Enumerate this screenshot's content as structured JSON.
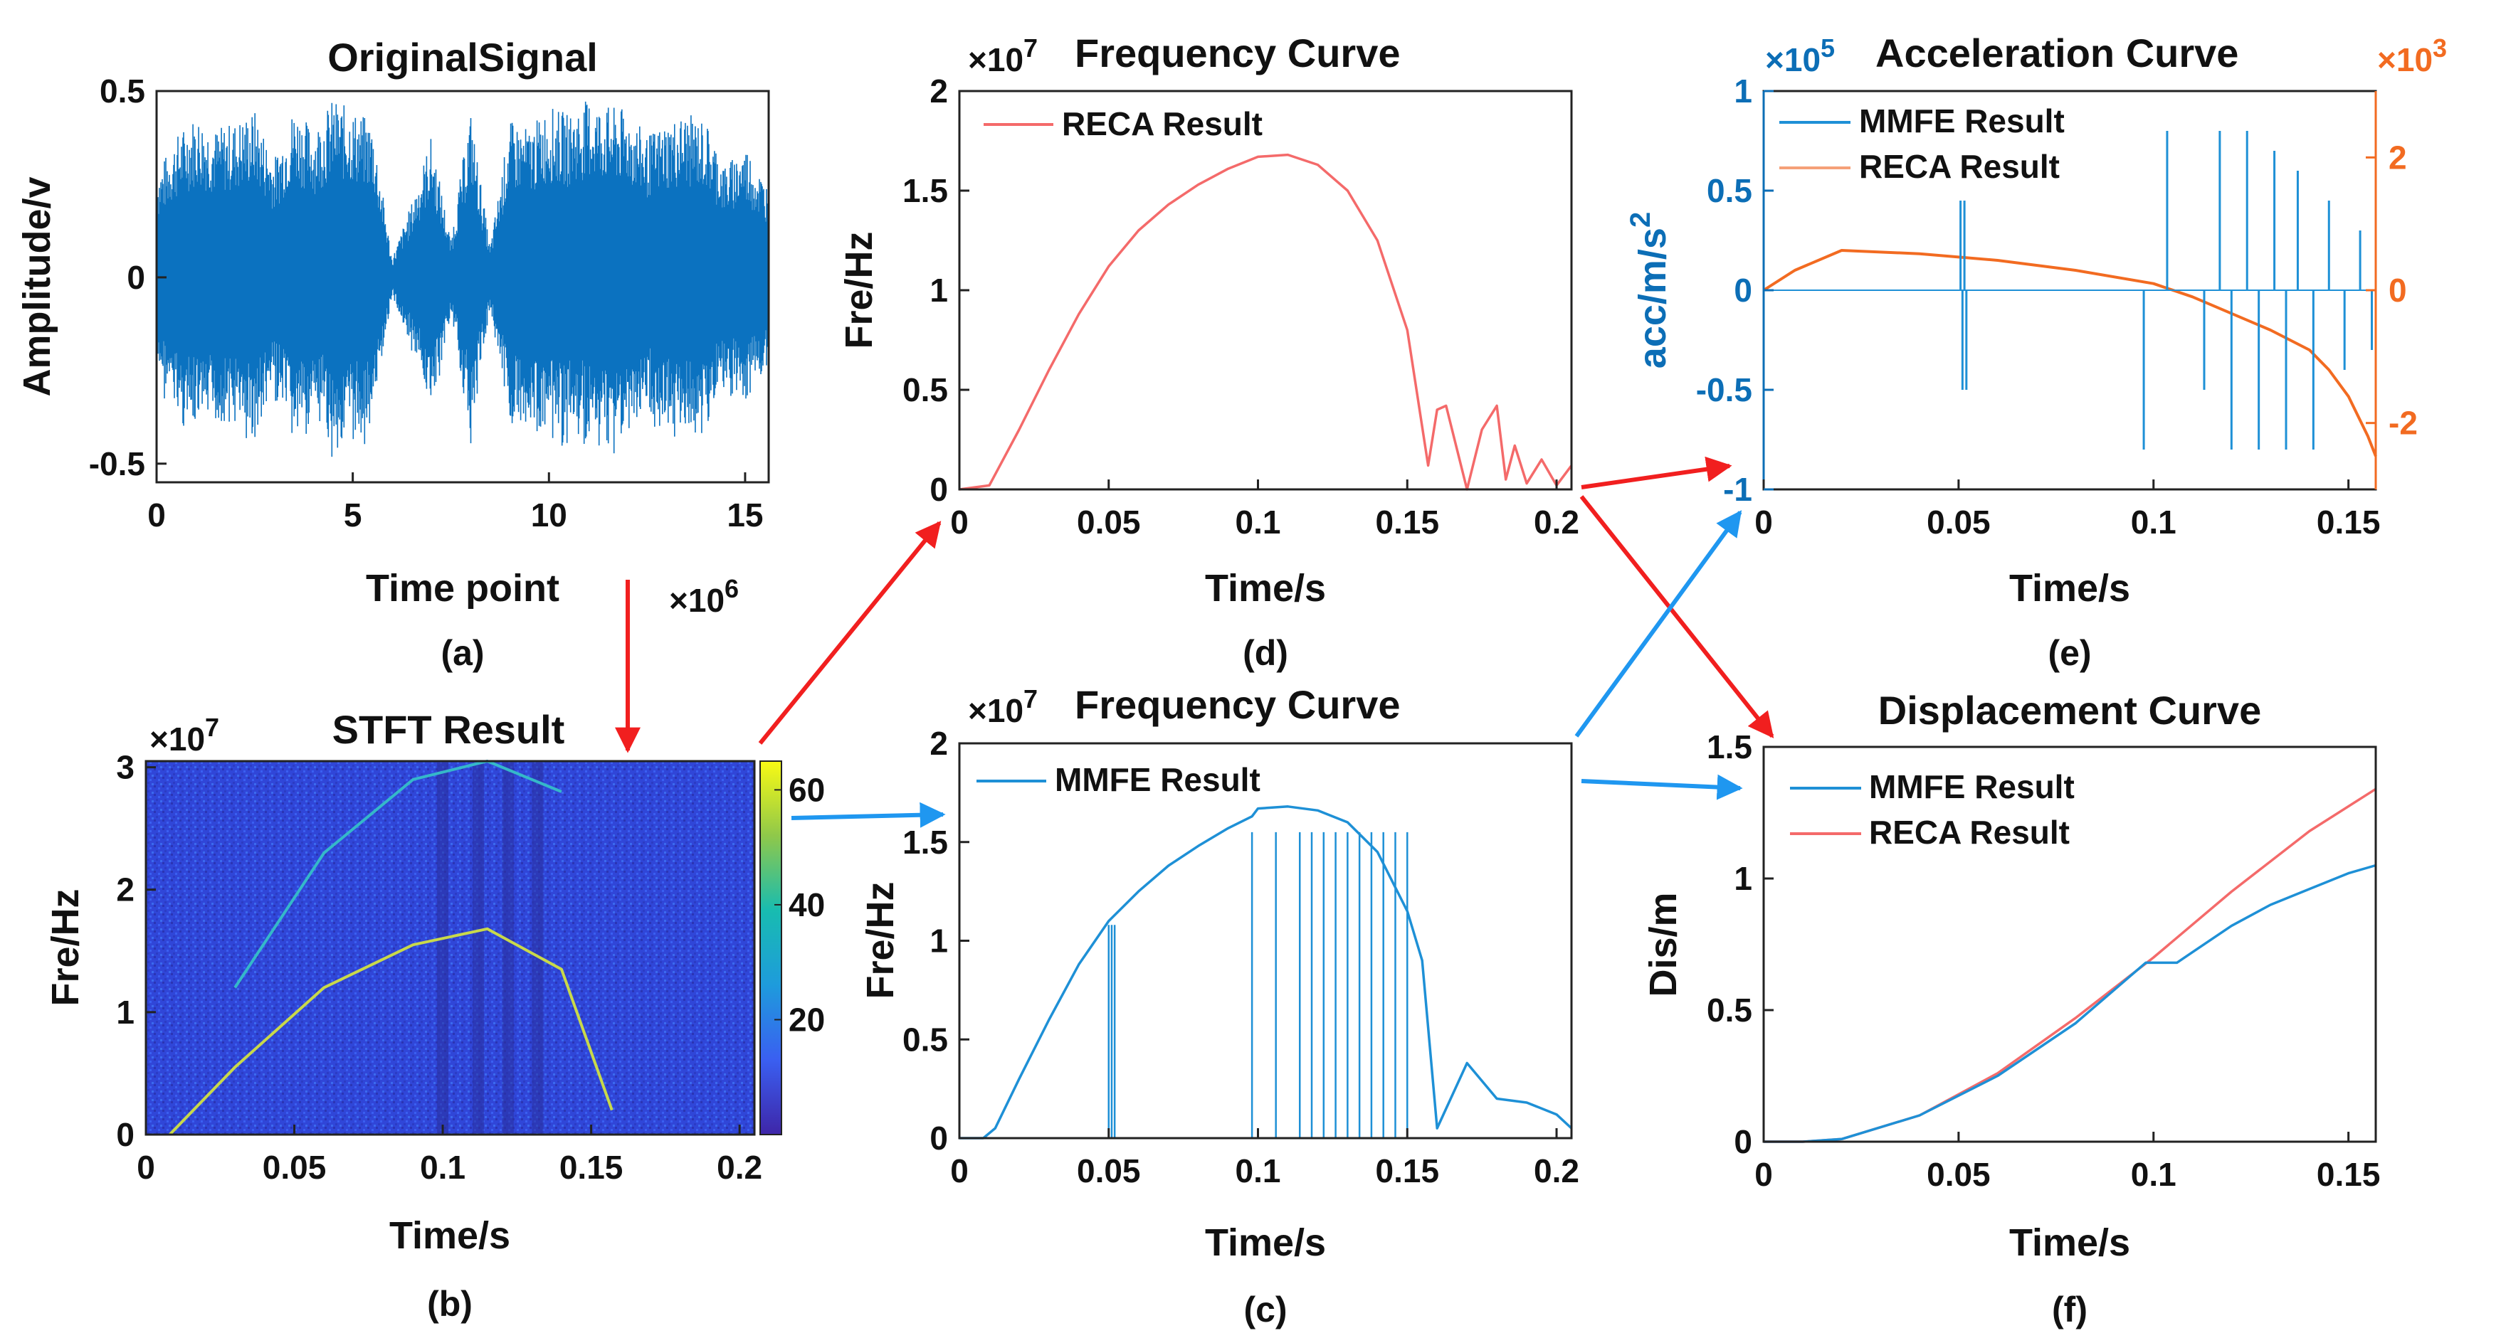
{
  "colors": {
    "blue": "#1e90d6",
    "red": "#f46a6a",
    "orange": "#f26b21",
    "darkblue": "#0c6eb6",
    "arrow_red": "#f11f1f",
    "arrow_blue": "#1f97f0"
  },
  "panels": {
    "a": {
      "caption": "(a)",
      "title": "OriginalSignal",
      "xlabel": "Time point",
      "ylabel": "Amplitude/v",
      "xexp": "×10",
      "xexp_power": "6",
      "xticks": [
        "0",
        "5",
        "10",
        "15"
      ],
      "yticks": [
        "-0.5",
        "0",
        "0.5"
      ]
    },
    "b": {
      "caption": "(b)",
      "title": "STFT Result",
      "xlabel": "Time/s",
      "ylabel": "Fre/Hz",
      "yexp": "×10",
      "yexp_power": "7",
      "xticks": [
        "0",
        "0.05",
        "0.1",
        "0.15",
        "0.2"
      ],
      "yticks": [
        "0",
        "1",
        "2",
        "3"
      ],
      "cbticks": [
        "20",
        "40",
        "60"
      ]
    },
    "c": {
      "caption": "(c)",
      "title": "Frequency Curve",
      "xlabel": "Time/s",
      "ylabel": "Fre/Hz",
      "yexp": "×10",
      "yexp_power": "7",
      "legend": [
        "MMFE Result"
      ],
      "xticks": [
        "0",
        "0.05",
        "0.1",
        "0.15",
        "0.2"
      ],
      "yticks": [
        "0",
        "0.5",
        "1",
        "1.5",
        "2"
      ]
    },
    "d": {
      "caption": "(d)",
      "title": "Frequency Curve",
      "xlabel": "Time/s",
      "ylabel": "Fre/Hz",
      "yexp": "×10",
      "yexp_power": "7",
      "legend": [
        "RECA Result"
      ],
      "xticks": [
        "0",
        "0.05",
        "0.1",
        "0.15",
        "0.2"
      ],
      "yticks": [
        "0",
        "0.5",
        "1",
        "1.5",
        "2"
      ]
    },
    "e": {
      "caption": "(e)",
      "title": "Acceleration Curve",
      "xlabel": "Time/s",
      "ylabel": "acc/m/s",
      "ylabel_sup": "2",
      "yexp": "×10",
      "yexp_power": "5",
      "yexp_right": "×10",
      "yexp_right_power": "3",
      "legend": [
        "MMFE Result",
        "RECA Result"
      ],
      "xticks": [
        "0",
        "0.05",
        "0.1",
        "0.15"
      ],
      "yticks": [
        "-1",
        "-0.5",
        "0",
        "0.5",
        "1"
      ],
      "yticks_right": [
        "-2",
        "0",
        "2"
      ]
    },
    "f": {
      "caption": "(f)",
      "title": "Displacement Curve",
      "xlabel": "Time/s",
      "ylabel": "Dis/m",
      "legend": [
        "MMFE Result",
        "RECA Result"
      ],
      "xticks": [
        "0",
        "0.05",
        "0.1",
        "0.15"
      ],
      "yticks": [
        "0",
        "0.5",
        "1",
        "1.5"
      ]
    }
  },
  "chart_data": [
    {
      "id": "a",
      "type": "line",
      "title": "OriginalSignal",
      "xlabel": "Time point",
      "ylabel": "Amplitude/v",
      "xlim": [
        0,
        15.6
      ],
      "ylim": [
        -0.55,
        0.5
      ],
      "x_unit_scale": "1e6",
      "envelope": {
        "x": [
          0,
          0.5,
          1,
          1.5,
          2,
          2.5,
          3,
          3.5,
          4,
          4.5,
          5,
          5.5,
          6,
          6.5,
          7,
          7.5,
          8,
          8.5,
          9,
          9.5,
          10,
          10.5,
          11,
          11.5,
          12,
          12.5,
          13,
          13.5,
          14,
          14.5,
          15,
          15.5
        ],
        "amp": [
          0.28,
          0.38,
          0.44,
          0.4,
          0.42,
          0.45,
          0.32,
          0.46,
          0.4,
          0.48,
          0.45,
          0.42,
          0.05,
          0.2,
          0.38,
          0.1,
          0.45,
          0.08,
          0.42,
          0.4,
          0.46,
          0.44,
          0.48,
          0.46,
          0.45,
          0.38,
          0.42,
          0.44,
          0.42,
          0.3,
          0.36,
          0.26
        ]
      }
    },
    {
      "id": "b",
      "type": "heatmap",
      "title": "STFT Result",
      "xlabel": "Time/s",
      "ylabel": "Fre/Hz",
      "xlim": [
        0,
        0.205
      ],
      "ylim": [
        0,
        3.05
      ],
      "y_unit_scale": "1e7",
      "clim": [
        0,
        65
      ],
      "colorbar_ticks": [
        20,
        40,
        60
      ],
      "ridge_curves": [
        {
          "name": "fundamental",
          "x": [
            0.008,
            0.03,
            0.06,
            0.09,
            0.115,
            0.14,
            0.157
          ],
          "y": [
            0.0,
            0.55,
            1.2,
            1.55,
            1.68,
            1.35,
            0.2
          ]
        },
        {
          "name": "harmonic",
          "x": [
            0.03,
            0.06,
            0.09,
            0.115,
            0.14
          ],
          "y": [
            1.2,
            2.3,
            2.9,
            3.05,
            2.8
          ]
        }
      ]
    },
    {
      "id": "c",
      "type": "line",
      "title": "Frequency Curve",
      "xlabel": "Time/s",
      "ylabel": "Fre/Hz",
      "xlim": [
        0,
        0.205
      ],
      "ylim": [
        0,
        2
      ],
      "y_unit_scale": "1e7",
      "series": [
        {
          "name": "MMFE Result",
          "x": [
            0,
            0.008,
            0.012,
            0.02,
            0.03,
            0.04,
            0.05,
            0.06,
            0.07,
            0.08,
            0.09,
            0.098,
            0.1,
            0.11,
            0.12,
            0.13,
            0.14,
            0.15,
            0.155,
            0.16,
            0.17,
            0.18,
            0.19,
            0.2,
            0.205
          ],
          "y": [
            0,
            0,
            0.05,
            0.3,
            0.6,
            0.88,
            1.1,
            1.25,
            1.38,
            1.48,
            1.57,
            1.63,
            1.67,
            1.68,
            1.66,
            1.6,
            1.45,
            1.15,
            0.9,
            0.05,
            0.38,
            0.2,
            0.18,
            0.12,
            0.05
          ]
        }
      ]
    },
    {
      "id": "d",
      "type": "line",
      "title": "Frequency Curve",
      "xlabel": "Time/s",
      "ylabel": "Fre/Hz",
      "xlim": [
        0,
        0.205
      ],
      "ylim": [
        0,
        2
      ],
      "y_unit_scale": "1e7",
      "series": [
        {
          "name": "RECA Result",
          "x": [
            0,
            0.01,
            0.02,
            0.03,
            0.04,
            0.05,
            0.06,
            0.07,
            0.08,
            0.09,
            0.1,
            0.11,
            0.12,
            0.13,
            0.14,
            0.15,
            0.157,
            0.16,
            0.163,
            0.17,
            0.175,
            0.18,
            0.183,
            0.186,
            0.19,
            0.195,
            0.2,
            0.205
          ],
          "y": [
            0,
            0.02,
            0.3,
            0.6,
            0.88,
            1.12,
            1.3,
            1.43,
            1.53,
            1.61,
            1.67,
            1.68,
            1.63,
            1.5,
            1.25,
            0.8,
            0.12,
            0.4,
            0.42,
            0.0,
            0.3,
            0.42,
            0.05,
            0.22,
            0.03,
            0.15,
            0.02,
            0.12
          ]
        }
      ]
    },
    {
      "id": "e",
      "type": "line",
      "title": "Acceleration Curve",
      "xlabel": "Time/s",
      "ylabel": "acc/m/s^2",
      "xlim": [
        0,
        0.157
      ],
      "ylim": [
        -1,
        1
      ],
      "y_unit_scale": "1e5",
      "ylim_right": [
        -3,
        3
      ],
      "y_right_unit_scale": "1e3",
      "series": [
        {
          "name": "MMFE Result",
          "axis": "left",
          "spikes": [
            {
              "x": 0.0505,
              "y": 0.45
            },
            {
              "x": 0.051,
              "y": -0.5
            },
            {
              "x": 0.0515,
              "y": 0.45
            },
            {
              "x": 0.052,
              "y": -0.5
            },
            {
              "x": 0.0975,
              "y": -0.8
            },
            {
              "x": 0.1035,
              "y": 0.8
            },
            {
              "x": 0.113,
              "y": -0.5
            },
            {
              "x": 0.117,
              "y": 0.8
            },
            {
              "x": 0.12,
              "y": -0.8
            },
            {
              "x": 0.124,
              "y": 0.8
            },
            {
              "x": 0.127,
              "y": -0.8
            },
            {
              "x": 0.131,
              "y": 0.7
            },
            {
              "x": 0.134,
              "y": -0.8
            },
            {
              "x": 0.137,
              "y": 0.6
            },
            {
              "x": 0.141,
              "y": -0.8
            },
            {
              "x": 0.145,
              "y": 0.45
            },
            {
              "x": 0.149,
              "y": -0.4
            },
            {
              "x": 0.153,
              "y": 0.3
            },
            {
              "x": 0.156,
              "y": -0.3
            }
          ]
        },
        {
          "name": "RECA Result",
          "axis": "right",
          "x": [
            0,
            0.008,
            0.02,
            0.04,
            0.06,
            0.08,
            0.1,
            0.11,
            0.12,
            0.13,
            0.14,
            0.145,
            0.15,
            0.155,
            0.157
          ],
          "y": [
            0,
            0.3,
            0.6,
            0.55,
            0.45,
            0.3,
            0.1,
            -0.1,
            -0.35,
            -0.6,
            -0.9,
            -1.2,
            -1.6,
            -2.2,
            -2.5
          ]
        }
      ]
    },
    {
      "id": "f",
      "type": "line",
      "title": "Displacement Curve",
      "xlabel": "Time/s",
      "ylabel": "Dis/m",
      "xlim": [
        0,
        0.157
      ],
      "ylim": [
        0,
        1.5
      ],
      "series": [
        {
          "name": "MMFE Result",
          "x": [
            0,
            0.01,
            0.02,
            0.04,
            0.06,
            0.08,
            0.098,
            0.106,
            0.11,
            0.12,
            0.13,
            0.14,
            0.15,
            0.157
          ],
          "y": [
            0,
            0,
            0.01,
            0.1,
            0.25,
            0.45,
            0.68,
            0.68,
            0.72,
            0.82,
            0.9,
            0.96,
            1.02,
            1.05
          ]
        },
        {
          "name": "RECA Result",
          "x": [
            0,
            0.01,
            0.02,
            0.04,
            0.06,
            0.08,
            0.1,
            0.12,
            0.14,
            0.157
          ],
          "y": [
            0,
            0,
            0.01,
            0.1,
            0.26,
            0.47,
            0.7,
            0.95,
            1.18,
            1.34
          ]
        }
      ]
    }
  ]
}
